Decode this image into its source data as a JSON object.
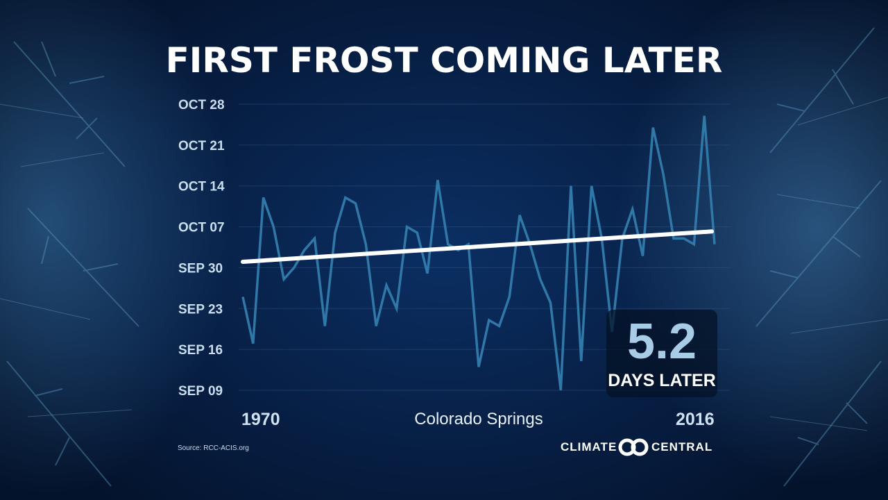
{
  "title": "FIRST FROST COMING LATER",
  "location": "Colorado Springs",
  "callout": {
    "value": "5.2",
    "label": "DAYS LATER"
  },
  "source": "Source: RCC-ACIS.org",
  "logo": {
    "left_word": "CLIMATE",
    "right_word": "CENTRAL"
  },
  "colors": {
    "background": "#061b3d",
    "series": "#2f78a8",
    "trend": "#ffffff",
    "tick_text": "#c9dff0",
    "callout_value": "#a8cce6"
  },
  "chart_data": {
    "type": "line",
    "title": "FIRST FROST COMING LATER",
    "xlabel": "",
    "ylabel": "",
    "x_range": [
      1970,
      2016
    ],
    "x_tick_labels": [
      "1970",
      "2016"
    ],
    "y_tick_labels": [
      "SEP 09",
      "SEP 16",
      "SEP 23",
      "SEP 30",
      "OCT 07",
      "OCT 14",
      "OCT 21",
      "OCT 28"
    ],
    "y_range_day_of_september": [
      9,
      58
    ],
    "grid": true,
    "series": [
      {
        "name": "",
        "x": [
          1970,
          1971,
          1972,
          1973,
          1974,
          1975,
          1976,
          1977,
          1978,
          1979,
          1980,
          1981,
          1982,
          1983,
          1984,
          1985,
          1986,
          1987,
          1988,
          1989,
          1990,
          1991,
          1992,
          1993,
          1994,
          1995,
          1996,
          1997,
          1998,
          1999,
          2000,
          2001,
          2002,
          2003,
          2004,
          2005,
          2006,
          2007,
          2008,
          2009,
          2010,
          2011,
          2012,
          2013,
          2014,
          2015,
          2016
        ],
        "y_day_of_september": [
          25,
          17,
          42,
          37,
          28,
          30,
          33,
          35,
          20,
          36,
          42,
          41,
          34,
          20,
          27,
          23,
          37,
          36,
          29,
          45,
          34,
          33,
          34,
          13,
          21,
          20,
          25,
          39,
          34,
          28,
          24,
          9,
          44,
          14,
          44,
          35,
          19,
          35,
          40,
          32,
          54,
          46,
          35,
          35,
          34,
          56,
          34
        ]
      },
      {
        "name": "",
        "type": "trend",
        "x": [
          1970,
          2016
        ],
        "y_day_of_september": [
          31.0,
          36.2
        ]
      }
    ],
    "annotation": "5.2 DAYS LATER"
  }
}
